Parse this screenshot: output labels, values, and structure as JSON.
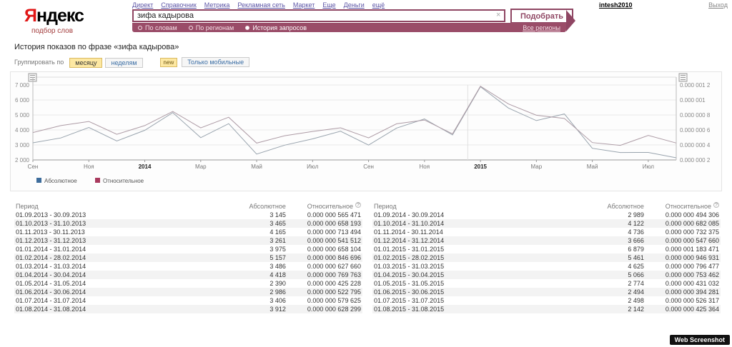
{
  "header": {
    "logo_ya": "Я",
    "logo_rest": "ндекс",
    "logo_sub": "подбор слов",
    "nav": [
      "Директ",
      "Справочник",
      "Метрика",
      "Рекламная сеть",
      "Маркет",
      "Еще",
      "Деньги",
      "ещё"
    ],
    "user": "intesh2010",
    "logout": "Выход"
  },
  "search": {
    "query": "зифа кадырова",
    "clear_glyph": "×",
    "submit_label": "Подобрать",
    "modes": [
      {
        "label": "По словам",
        "selected": false
      },
      {
        "label": "По регионам",
        "selected": false
      },
      {
        "label": "История запросов",
        "selected": true
      }
    ],
    "regions_label": "Все регионы"
  },
  "content": {
    "title": "История показов по фразе «зифа кадырова»",
    "group_label": "Группировать по",
    "group_buttons": [
      {
        "label": "месяцу",
        "active": true
      },
      {
        "label": "неделям",
        "active": false
      }
    ],
    "new_badge": "new",
    "mobile_button": "Только мобильные"
  },
  "chart_data": {
    "type": "line",
    "title": "История показов по фразе «зифа кадырова»",
    "x_months": [
      "09.2013",
      "10.2013",
      "11.2013",
      "12.2013",
      "01.2014",
      "02.2014",
      "03.2014",
      "04.2014",
      "05.2014",
      "06.2014",
      "07.2014",
      "08.2014",
      "09.2014",
      "10.2014",
      "11.2014",
      "12.2014",
      "01.2015",
      "02.2015",
      "03.2015",
      "04.2015",
      "05.2015",
      "06.2015",
      "07.2015",
      "08.2015"
    ],
    "x_tick_labels": [
      "Сен",
      "Ноя",
      "2014",
      "Мар",
      "Май",
      "Июл",
      "Сен",
      "Ноя",
      "2015",
      "Мар",
      "Май",
      "Июл"
    ],
    "axes": {
      "left": {
        "min": 2000,
        "max": 7000,
        "tick_labels": [
          "7 000",
          "6 000",
          "5 000",
          "4 000",
          "3 000",
          "2 000"
        ]
      },
      "right": {
        "min": 2e-07,
        "max": 1.2e-06,
        "tick_labels": [
          "0.000 001 2",
          "0.000 001",
          "0.000 000 8",
          "0.000 000 6",
          "0.000 000 4",
          "0.000 000 2"
        ]
      }
    },
    "grid": true,
    "vline_frac": 0.676,
    "legend_position": "bottom-left",
    "series": [
      {
        "name": "Абсолютное",
        "axis": "left",
        "line_color": "#98a3ad",
        "legend_color": "#3e6d9c",
        "values": [
          3145,
          3465,
          4165,
          3261,
          3975,
          5157,
          3486,
          4418,
          2390,
          2986,
          3406,
          3912,
          2989,
          4122,
          4736,
          3666,
          6879,
          5461,
          4625,
          5066,
          2774,
          2494,
          2498,
          2142
        ]
      },
      {
        "name": "Относительное",
        "axis": "right",
        "line_color": "#ad9ba5",
        "legend_color": "#a93a5e",
        "values": [
          5.65471e-07,
          6.58193e-07,
          7.13494e-07,
          5.41512e-07,
          6.58104e-07,
          8.46696e-07,
          6.2766e-07,
          7.69763e-07,
          4.25228e-07,
          5.22795e-07,
          5.79625e-07,
          6.28299e-07,
          4.94306e-07,
          6.82085e-07,
          7.32375e-07,
          5.4766e-07,
          1.183471e-06,
          9.46931e-07,
          7.96477e-07,
          7.53462e-07,
          4.31032e-07,
          3.94281e-07,
          5.26317e-07,
          4.25364e-07
        ]
      }
    ]
  },
  "table": {
    "headers": [
      "Период",
      "Абсолютное",
      "Относительное"
    ],
    "help_glyph": "?",
    "left_rows": [
      [
        "01.09.2013 - 30.09.2013",
        "3 145",
        "0.000 000 565 471"
      ],
      [
        "01.10.2013 - 31.10.2013",
        "3 465",
        "0.000 000 658 193"
      ],
      [
        "01.11.2013 - 30.11.2013",
        "4 165",
        "0.000 000 713 494"
      ],
      [
        "01.12.2013 - 31.12.2013",
        "3 261",
        "0.000 000 541 512"
      ],
      [
        "01.01.2014 - 31.01.2014",
        "3 975",
        "0.000 000 658 104"
      ],
      [
        "01.02.2014 - 28.02.2014",
        "5 157",
        "0.000 000 846 696"
      ],
      [
        "01.03.2014 - 31.03.2014",
        "3 486",
        "0.000 000 627 660"
      ],
      [
        "01.04.2014 - 30.04.2014",
        "4 418",
        "0.000 000 769 763"
      ],
      [
        "01.05.2014 - 31.05.2014",
        "2 390",
        "0.000 000 425 228"
      ],
      [
        "01.06.2014 - 30.06.2014",
        "2 986",
        "0.000 000 522 795"
      ],
      [
        "01.07.2014 - 31.07.2014",
        "3 406",
        "0.000 000 579 625"
      ],
      [
        "01.08.2014 - 31.08.2014",
        "3 912",
        "0.000 000 628 299"
      ]
    ],
    "right_rows": [
      [
        "01.09.2014 - 30.09.2014",
        "2 989",
        "0.000 000 494 306"
      ],
      [
        "01.10.2014 - 31.10.2014",
        "4 122",
        "0.000 000 682 085"
      ],
      [
        "01.11.2014 - 30.11.2014",
        "4 736",
        "0.000 000 732 375"
      ],
      [
        "01.12.2014 - 31.12.2014",
        "3 666",
        "0.000 000 547 660"
      ],
      [
        "01.01.2015 - 31.01.2015",
        "6 879",
        "0.000 001 183 471"
      ],
      [
        "01.02.2015 - 28.02.2015",
        "5 461",
        "0.000 000 946 931"
      ],
      [
        "01.03.2015 - 31.03.2015",
        "4 625",
        "0.000 000 796 477"
      ],
      [
        "01.04.2015 - 30.04.2015",
        "5 066",
        "0.000 000 753 462"
      ],
      [
        "01.05.2015 - 31.05.2015",
        "2 774",
        "0.000 000 431 032"
      ],
      [
        "01.06.2015 - 30.06.2015",
        "2 494",
        "0.000 000 394 281"
      ],
      [
        "01.07.2015 - 31.07.2015",
        "2 498",
        "0.000 000 526 317"
      ],
      [
        "01.08.2015 - 31.08.2015",
        "2 142",
        "0.000 000 425 364"
      ]
    ]
  },
  "badge": {
    "label": "Web Screenshot"
  }
}
